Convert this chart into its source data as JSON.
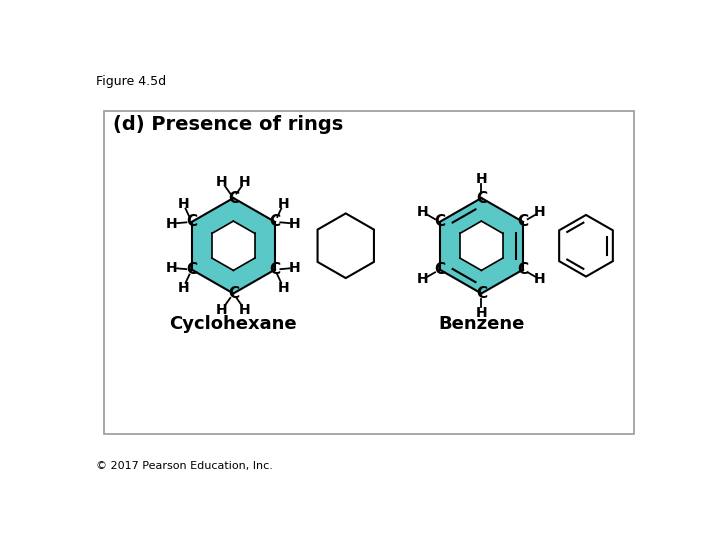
{
  "title": "Figure 4.5d",
  "subtitle": "(d) Presence of rings",
  "copyright": "© 2017 Pearson Education, Inc.",
  "cyclohexane_label": "Cyclohexane",
  "benzene_label": "Benzene",
  "teal_color": "#5BC8C8",
  "bg_color": "#ffffff",
  "box_color": "#999999",
  "text_color": "#000000",
  "font_size_title": 9,
  "font_size_subtitle": 14,
  "font_size_label": 13,
  "font_size_atom_C": 11,
  "font_size_atom_H": 10,
  "font_size_copyright": 8
}
